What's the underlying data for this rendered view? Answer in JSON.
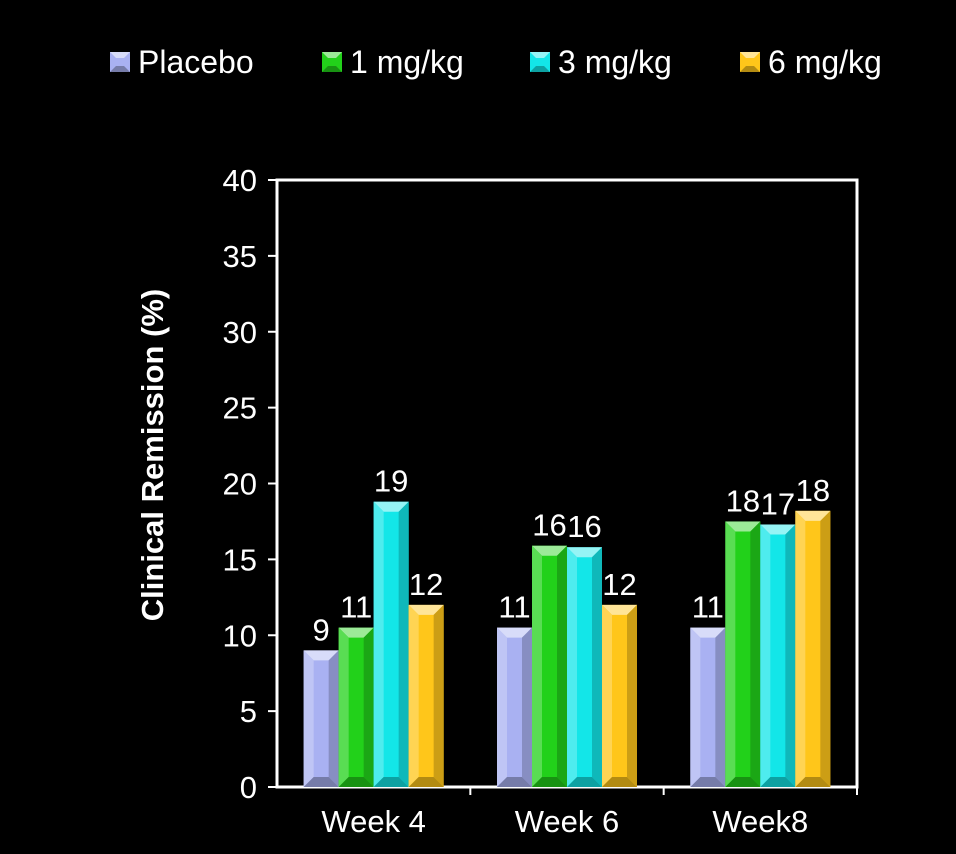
{
  "chart_data": {
    "type": "bar",
    "title": "",
    "xlabel": "",
    "ylabel": "Clinical Remission (%)",
    "ylim": [
      0,
      40
    ],
    "yticks": [
      0,
      5,
      10,
      15,
      20,
      25,
      30,
      35,
      40
    ],
    "categories": [
      "Week 4",
      "Week 6",
      "Week8"
    ],
    "legend_position": "top",
    "series": [
      {
        "name": "Placebo",
        "color": "#A9B1F2",
        "values": [
          9,
          10.5,
          10.5
        ],
        "labels": [
          "9",
          "11",
          "11"
        ]
      },
      {
        "name": "1 mg/kg",
        "color": "#22D11A",
        "values": [
          10.5,
          15.9,
          17.5
        ],
        "labels": [
          "11",
          "16",
          "18"
        ]
      },
      {
        "name": "3 mg/kg",
        "color": "#13E6E8",
        "values": [
          18.8,
          15.8,
          17.3
        ],
        "labels": [
          "19",
          "16",
          "17"
        ]
      },
      {
        "name": "6 mg/kg",
        "color": "#FFC61A",
        "values": [
          12,
          12,
          18.2
        ],
        "labels": [
          "12",
          "12",
          "18"
        ]
      }
    ],
    "grid": false
  }
}
